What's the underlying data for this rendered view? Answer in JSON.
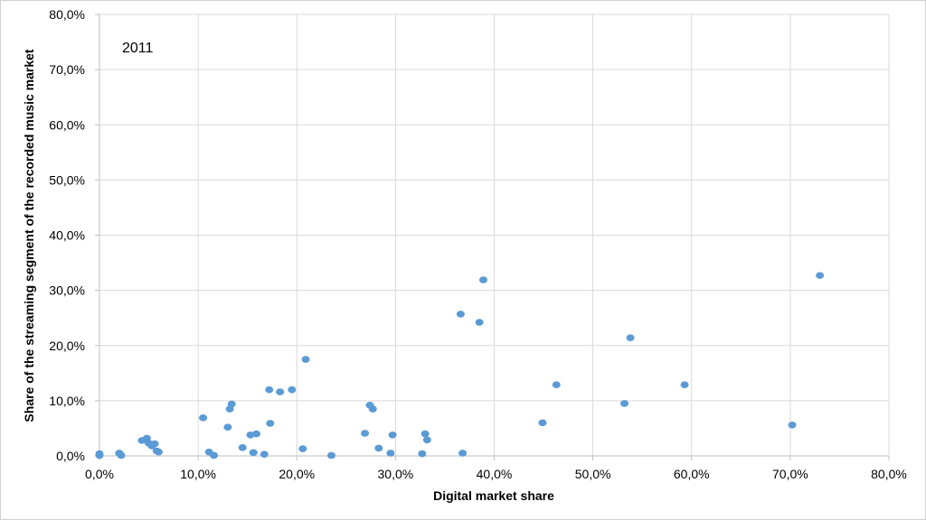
{
  "chart_data": {
    "type": "scatter",
    "annotation": "2011",
    "xlabel": "Digital market share",
    "ylabel": "Share of the streaming segment of the recorded music market",
    "xlim": [
      0,
      80
    ],
    "ylim": [
      0,
      80
    ],
    "x_ticks": [
      "0,0%",
      "10,0%",
      "20,0%",
      "30,0%",
      "40,0%",
      "50,0%",
      "60,0%",
      "70,0%",
      "80,0%"
    ],
    "y_ticks": [
      "0,0%",
      "10,0%",
      "20,0%",
      "30,0%",
      "40,0%",
      "50,0%",
      "60,0%",
      "70,0%",
      "80,0%"
    ],
    "grid": true,
    "marker_color": "#5b9bd5",
    "points": [
      [
        0.0,
        0.4
      ],
      [
        0.0,
        0.1
      ],
      [
        2.0,
        0.5
      ],
      [
        2.2,
        0.1
      ],
      [
        4.3,
        2.8
      ],
      [
        4.8,
        3.2
      ],
      [
        5.0,
        2.3
      ],
      [
        5.3,
        1.8
      ],
      [
        5.6,
        2.2
      ],
      [
        5.8,
        0.9
      ],
      [
        6.0,
        0.7
      ],
      [
        10.5,
        6.9
      ],
      [
        11.1,
        0.7
      ],
      [
        11.6,
        0.1
      ],
      [
        13.0,
        5.2
      ],
      [
        13.2,
        8.5
      ],
      [
        13.4,
        9.4
      ],
      [
        14.5,
        1.5
      ],
      [
        15.3,
        3.8
      ],
      [
        15.6,
        0.6
      ],
      [
        15.9,
        4.0
      ],
      [
        16.7,
        0.3
      ],
      [
        17.2,
        12.0
      ],
      [
        17.3,
        5.9
      ],
      [
        18.3,
        11.6
      ],
      [
        19.5,
        12.0
      ],
      [
        20.6,
        1.3
      ],
      [
        20.9,
        17.5
      ],
      [
        23.5,
        0.1
      ],
      [
        26.9,
        4.1
      ],
      [
        27.4,
        9.2
      ],
      [
        27.7,
        8.5
      ],
      [
        28.3,
        1.4
      ],
      [
        29.5,
        0.5
      ],
      [
        29.7,
        3.8
      ],
      [
        32.7,
        0.4
      ],
      [
        33.0,
        4.0
      ],
      [
        33.2,
        2.9
      ],
      [
        36.6,
        25.7
      ],
      [
        36.8,
        0.5
      ],
      [
        38.5,
        24.2
      ],
      [
        38.9,
        31.9
      ],
      [
        44.9,
        6.0
      ],
      [
        46.3,
        12.9
      ],
      [
        53.2,
        9.5
      ],
      [
        53.8,
        21.4
      ],
      [
        59.3,
        12.9
      ],
      [
        70.2,
        5.6
      ],
      [
        73.0,
        32.7
      ]
    ]
  }
}
